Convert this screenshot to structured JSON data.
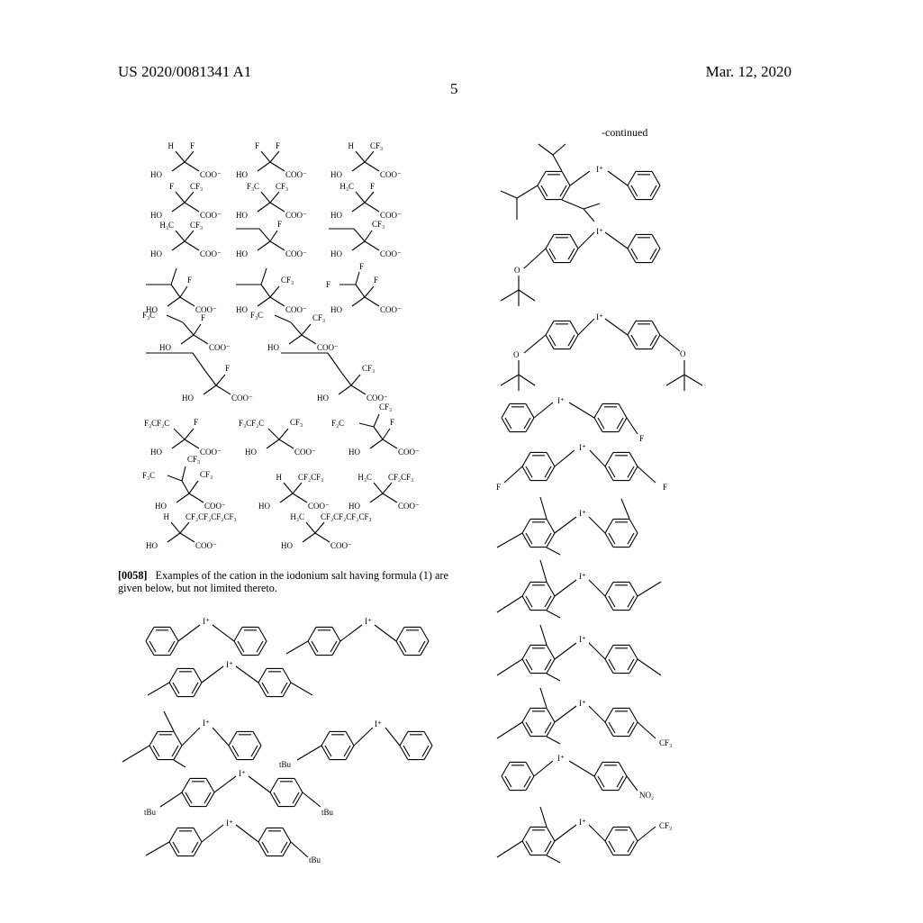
{
  "header": {
    "patent_number": "US 2020/0081341 A1",
    "date": "Mar. 12, 2020",
    "page": "5"
  },
  "continued_label": "-continued",
  "paragraph": {
    "number": "[0058]",
    "text": "Examples of the cation in the iodonium salt having formula (1) are given below, but not limited thereto."
  },
  "anion_structures": [
    {
      "substituents": [
        "H",
        "F"
      ],
      "labels": [
        "HO",
        "COO⁻"
      ]
    },
    {
      "substituents": [
        "F",
        "F"
      ],
      "labels": [
        "HO",
        "COO⁻"
      ]
    },
    {
      "substituents": [
        "H",
        "CF₃"
      ],
      "labels": [
        "HO",
        "COO⁻"
      ]
    },
    {
      "substituents": [
        "F",
        "CF₃"
      ],
      "labels": [
        "HO",
        "COO⁻"
      ]
    },
    {
      "substituents": [
        "F₃C",
        "CF₃"
      ],
      "labels": [
        "HO",
        "COO⁻"
      ]
    },
    {
      "substituents": [
        "H₃C",
        "F"
      ],
      "labels": [
        "HO",
        "COO⁻"
      ]
    },
    {
      "substituents": [
        "H₃C",
        "CF₃"
      ],
      "labels": [
        "HO",
        "COO⁻"
      ]
    },
    {
      "substituents": [
        "F"
      ],
      "labels": [
        "HO",
        "COO⁻"
      ]
    },
    {
      "substituents": [
        "CF₃"
      ],
      "labels": [
        "HO",
        "COO⁻"
      ]
    },
    {
      "substituents": [
        "F"
      ],
      "labels": [
        "HO",
        "COO⁻"
      ]
    },
    {
      "substituents": [
        "CF₃"
      ],
      "labels": [
        "HO",
        "COO⁻"
      ]
    },
    {
      "substituents": [
        "F",
        "F",
        "F"
      ],
      "labels": [
        "HO",
        "COO⁻"
      ]
    },
    {
      "substituents": [
        "F₃C",
        "F"
      ],
      "labels": [
        "HO",
        "COO⁻"
      ]
    },
    {
      "substituents": [
        "F₃C",
        "CF₃"
      ],
      "labels": [
        "HO",
        "COO⁻"
      ]
    },
    {
      "substituents": [
        "F"
      ],
      "labels": [
        "HO",
        "COO⁻"
      ]
    },
    {
      "substituents": [
        "CF₃"
      ],
      "labels": [
        "HO",
        "COO⁻"
      ]
    },
    {
      "substituents": [
        "F₃CF₂C",
        "F"
      ],
      "labels": [
        "HO",
        "COO⁻"
      ]
    },
    {
      "substituents": [
        "F₃CF₂C",
        "CF₃"
      ],
      "labels": [
        "HO",
        "COO⁻"
      ]
    },
    {
      "substituents": [
        "F₃C",
        "CF₃",
        "F"
      ],
      "labels": [
        "HO",
        "COO⁻"
      ]
    },
    {
      "substituents": [
        "F₃C",
        "CF₃",
        "CF₃"
      ],
      "labels": [
        "HO",
        "COO⁻"
      ]
    },
    {
      "substituents": [
        "H",
        "CF₂CF₃"
      ],
      "labels": [
        "HO",
        "COO⁻"
      ]
    },
    {
      "substituents": [
        "H₃C",
        "CF₂CF₃"
      ],
      "labels": [
        "HO",
        "COO⁻"
      ]
    },
    {
      "substituents": [
        "H",
        "CF₂CF₂CF₂CF₃"
      ],
      "labels": [
        "HO",
        "COO⁻"
      ]
    },
    {
      "substituents": [
        "H₃C",
        "CF₂CF₂CF₂CF₃"
      ],
      "labels": [
        "HO",
        "COO⁻"
      ]
    }
  ],
  "cation_labels": {
    "iodonium": "I⁺",
    "tBu": "tBu",
    "F": "F",
    "O": "O",
    "CF3": "CF₃",
    "NO2": "NO₂"
  }
}
